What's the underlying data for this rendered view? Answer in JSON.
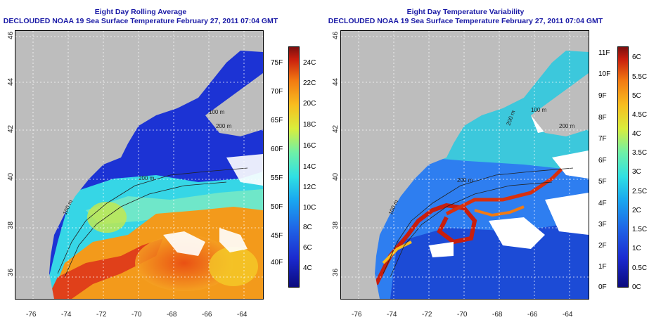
{
  "left_panel": {
    "title_line1": "Eight Day Rolling Average",
    "title_line2": "DECLOUDED NOAA 19 Sea Surface Temperature February 27, 2011 07:04 GMT",
    "depth_labels": [
      "100 m",
      "200 m",
      "100 m",
      "200 m"
    ],
    "colorbar_f": [
      "75F",
      "70F",
      "65F",
      "60F",
      "55F",
      "50F",
      "45F",
      "40F"
    ],
    "colorbar_c": [
      "24C",
      "22C",
      "20C",
      "18C",
      "16C",
      "14C",
      "12C",
      "10C",
      "8C",
      "6C",
      "4C"
    ]
  },
  "right_panel": {
    "title_line1": "Eight Day Temperature Variability",
    "title_line2": "DECLOUDED NOAA 19 Sea Surface Temperature February 27, 2011 07:04 GMT",
    "depth_labels": [
      "100 m",
      "200 m",
      "200 m",
      "100 m",
      "200 m"
    ],
    "colorbar_f": [
      "11F",
      "10F",
      "9F",
      "8F",
      "7F",
      "6F",
      "5F",
      "4F",
      "3F",
      "2F",
      "1F",
      "0F"
    ],
    "colorbar_c": [
      "6C",
      "5.5C",
      "5C",
      "4.5C",
      "4C",
      "3.5C",
      "3C",
      "2.5C",
      "2C",
      "1.5C",
      "1C",
      "0.5C",
      "0C"
    ]
  },
  "axes": {
    "lon_ticks": [
      "-76",
      "-74",
      "-72",
      "-70",
      "-68",
      "-66",
      "-64"
    ],
    "lat_ticks": [
      "46",
      "44",
      "42",
      "40",
      "38",
      "36"
    ]
  },
  "colors": {
    "title": "#1a1aa6",
    "land": "#bdbdbd",
    "cloud": "#ffffff",
    "cold": "#1b2ad0",
    "warm": "#f27a12"
  }
}
